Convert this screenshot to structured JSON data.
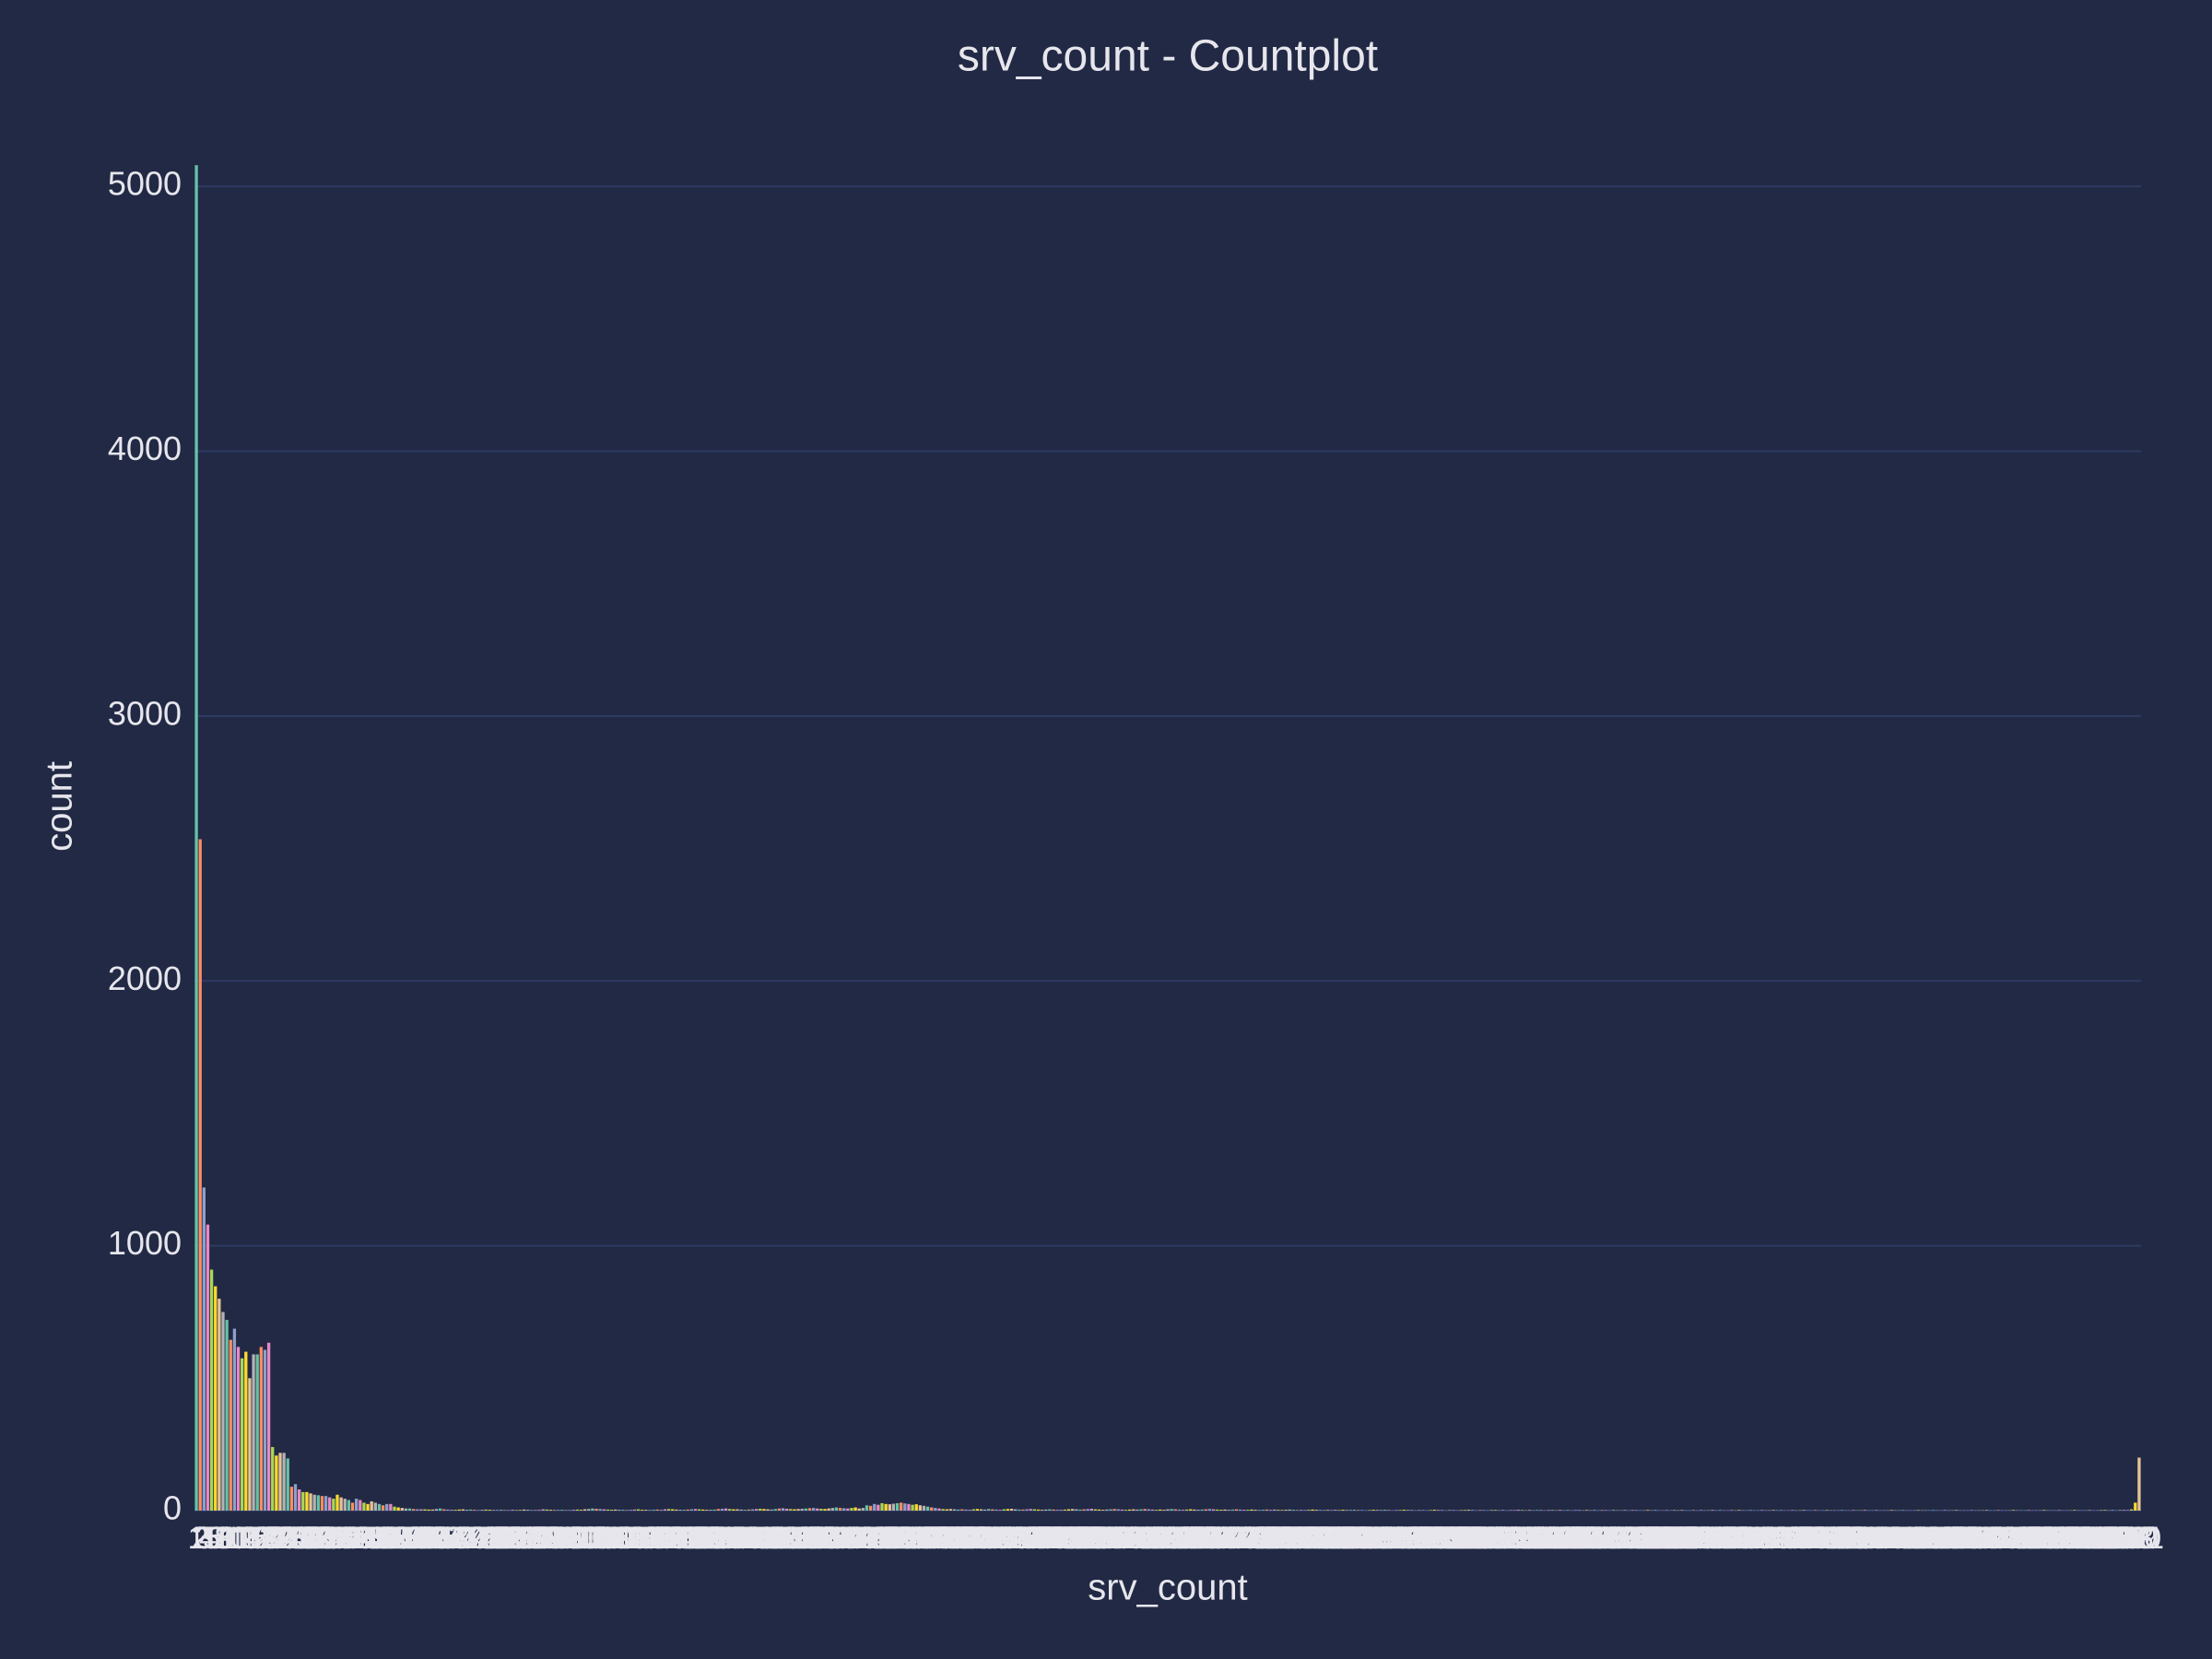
{
  "chart_data": {
    "type": "bar",
    "title": "srv_count - Countplot",
    "x_label": "srv_count",
    "y_label": "count",
    "palette": [
      "#66c2a5",
      "#fc8d62",
      "#8da0cb",
      "#e78ac3",
      "#a6d854",
      "#ffd92f",
      "#e5c494",
      "#b3b3b3"
    ],
    "ylim": [
      0,
      5300
    ],
    "yticks": [
      0,
      1000,
      2000,
      3000,
      4000,
      5000
    ],
    "grid": true,
    "categories": [
      1,
      2,
      3,
      4,
      5,
      6,
      7,
      8,
      9,
      10,
      11,
      12,
      13,
      14,
      15,
      16,
      17,
      18,
      19,
      20,
      21,
      22,
      23,
      24,
      25,
      26,
      27,
      28,
      29,
      30,
      31,
      32,
      33,
      34,
      35,
      36,
      37,
      38,
      39,
      40,
      41,
      42,
      43,
      44,
      45,
      46,
      47,
      48,
      49,
      50,
      51,
      52,
      53,
      54,
      55,
      56,
      57,
      58,
      59,
      60,
      61,
      62,
      63,
      64,
      65,
      66,
      67,
      68,
      69,
      70,
      71,
      72,
      73,
      74,
      75,
      76,
      77,
      78,
      79,
      80,
      81,
      82,
      83,
      84,
      85,
      86,
      87,
      88,
      89,
      90,
      91,
      92,
      93,
      94,
      95,
      96,
      97,
      98,
      99,
      100,
      101,
      102,
      103,
      104,
      105,
      106,
      107,
      108,
      109,
      110,
      111,
      112,
      113,
      114,
      115,
      116,
      117,
      118,
      119,
      120,
      121,
      122,
      123,
      124,
      125,
      126,
      127,
      128,
      129,
      130,
      131,
      132,
      133,
      134,
      135,
      136,
      137,
      138,
      139,
      140,
      141,
      142,
      143,
      144,
      145,
      146,
      147,
      148,
      149,
      150,
      151,
      152,
      153,
      154,
      155,
      156,
      157,
      158,
      159,
      160,
      161,
      162,
      163,
      164,
      165,
      166,
      167,
      168,
      169,
      170,
      171,
      172,
      173,
      174,
      175,
      176,
      177,
      178,
      179,
      180,
      181,
      182,
      183,
      184,
      185,
      186,
      187,
      188,
      189,
      190,
      191,
      192,
      193,
      194,
      195,
      196,
      197,
      198,
      199,
      200,
      201,
      202,
      203,
      204,
      205,
      206,
      207,
      208,
      209,
      210,
      211,
      212,
      213,
      214,
      215,
      216,
      217,
      218,
      219,
      220,
      221,
      222,
      223,
      224,
      225,
      226,
      227,
      228,
      229,
      230,
      231,
      232,
      233,
      234,
      235,
      236,
      237,
      238,
      239,
      240,
      241,
      242,
      243,
      244,
      245,
      246,
      247,
      248,
      249,
      250,
      251,
      252,
      253,
      254,
      255,
      256,
      257,
      258,
      259,
      260,
      261,
      262,
      263,
      264,
      265,
      266,
      267,
      268,
      269,
      270,
      271,
      272,
      273,
      274,
      275,
      276,
      277,
      278,
      279,
      280,
      281,
      282,
      283,
      284,
      285,
      286,
      287,
      288,
      289,
      290,
      291,
      292,
      293,
      294,
      295,
      296,
      297,
      298,
      299,
      300,
      301,
      302,
      303,
      304,
      305,
      306,
      307,
      308,
      309,
      310,
      311,
      312,
      313,
      314,
      315,
      316,
      317,
      318,
      319,
      320,
      321,
      322,
      323,
      324,
      325,
      326,
      327,
      328,
      329,
      330,
      331,
      332,
      333,
      334,
      335,
      336,
      337,
      338,
      339,
      340,
      341,
      342,
      343,
      344,
      345,
      346,
      347,
      348,
      349,
      350,
      351,
      352,
      353,
      354,
      355,
      356,
      357,
      358,
      359,
      360,
      361,
      362,
      363,
      364,
      365,
      366,
      367,
      368,
      369,
      370,
      371,
      372,
      373,
      374,
      375,
      376,
      377,
      378,
      379,
      380,
      381,
      382,
      383,
      384,
      385,
      386,
      387,
      388,
      389,
      390,
      391,
      392,
      393,
      394,
      395,
      396,
      397,
      398,
      399,
      400,
      401,
      402,
      403,
      404,
      405,
      406,
      407,
      408,
      409,
      410,
      411,
      412,
      413,
      414,
      415,
      416,
      417,
      418,
      419,
      420,
      421,
      422,
      423,
      424,
      425,
      426,
      427,
      428,
      429,
      430,
      431,
      432,
      433,
      434,
      435,
      436,
      437,
      438,
      439,
      440,
      441,
      442,
      443,
      444,
      445,
      446,
      447,
      448,
      449,
      450,
      451,
      452,
      453,
      454,
      455,
      456,
      457,
      458,
      459,
      460,
      461,
      462,
      463,
      464,
      465,
      466,
      467,
      468,
      469,
      470,
      471,
      472,
      473,
      474,
      475,
      476,
      477,
      478,
      479,
      480,
      481,
      482,
      483,
      484,
      485,
      486,
      487,
      488,
      489,
      490,
      491,
      492,
      493,
      494,
      495,
      496,
      497,
      498,
      499,
      500,
      501,
      502,
      503,
      504,
      505,
      506,
      507,
      508,
      509,
      510,
      511
    ],
    "values": [
      5080,
      2535,
      1220,
      1080,
      910,
      847,
      800,
      750,
      720,
      645,
      687,
      618,
      575,
      600,
      500,
      590,
      590,
      618,
      607,
      634,
      240,
      208,
      218,
      218,
      197,
      90,
      100,
      80,
      70,
      70,
      65,
      60,
      58,
      55,
      55,
      50,
      45,
      60,
      50,
      45,
      40,
      30,
      45,
      40,
      30,
      25,
      35,
      30,
      25,
      20,
      25,
      25,
      15,
      12,
      10,
      8,
      8,
      6,
      5,
      5,
      5,
      4,
      4,
      6,
      8,
      5,
      4,
      3,
      3,
      4,
      5,
      3,
      4,
      3,
      2,
      3,
      4,
      3,
      2,
      2,
      3,
      2,
      2,
      3,
      2,
      2,
      4,
      3,
      2,
      2,
      3,
      5,
      4,
      3,
      2,
      2,
      3,
      2,
      2,
      3,
      4,
      3,
      5,
      6,
      8,
      7,
      6,
      5,
      4,
      3,
      4,
      3,
      3,
      2,
      3,
      4,
      5,
      3,
      3,
      2,
      3,
      4,
      3,
      5,
      6,
      5,
      4,
      3,
      3,
      4,
      5,
      6,
      5,
      4,
      3,
      3,
      4,
      6,
      7,
      8,
      6,
      5,
      5,
      4,
      3,
      4,
      5,
      6,
      7,
      6,
      5,
      4,
      6,
      8,
      9,
      7,
      6,
      5,
      6,
      7,
      8,
      9,
      10,
      8,
      7,
      6,
      8,
      10,
      12,
      10,
      9,
      8,
      10,
      12,
      8,
      10,
      20,
      18,
      25,
      22,
      28,
      25,
      24,
      26,
      28,
      30,
      27,
      25,
      22,
      24,
      20,
      18,
      15,
      12,
      10,
      8,
      6,
      5,
      6,
      5,
      4,
      5,
      4,
      3,
      5,
      6,
      5,
      4,
      6,
      5,
      4,
      3,
      5,
      6,
      7,
      5,
      4,
      4,
      5,
      6,
      5,
      4,
      3,
      4,
      5,
      4,
      3,
      3,
      4,
      5,
      6,
      5,
      4,
      5,
      6,
      7,
      5,
      4,
      3,
      4,
      5,
      6,
      5,
      4,
      3,
      4,
      5,
      4,
      5,
      6,
      5,
      4,
      3,
      4,
      3,
      5,
      6,
      5,
      4,
      3,
      4,
      5,
      4,
      3,
      4,
      5,
      6,
      5,
      4,
      3,
      4,
      3,
      4,
      5,
      4,
      3,
      3,
      4,
      3,
      2,
      3,
      4,
      3,
      4,
      3,
      2,
      3,
      4,
      3,
      2,
      3,
      2,
      3,
      4,
      3,
      2,
      2,
      3,
      2,
      3,
      2,
      3,
      2,
      2,
      3,
      2,
      2,
      1,
      2,
      3,
      2,
      2,
      3,
      2,
      1,
      2,
      2,
      3,
      2,
      2,
      1,
      2,
      2,
      1,
      2,
      3,
      2,
      2,
      1,
      2,
      2,
      1,
      2,
      2,
      3,
      2,
      1,
      2,
      2,
      1,
      2,
      2,
      1,
      2,
      1,
      2,
      2,
      3,
      2,
      1,
      2,
      1,
      2,
      2,
      1,
      2,
      2,
      1,
      2,
      1,
      2,
      1,
      2,
      2,
      1,
      2,
      1,
      2,
      1,
      2,
      2,
      1,
      2,
      1,
      1,
      2,
      1,
      2,
      2,
      1,
      1,
      2,
      1,
      2,
      1,
      1,
      2,
      1,
      2,
      1,
      2,
      1,
      1,
      2,
      1,
      2,
      1,
      1,
      2,
      1,
      2,
      1,
      1,
      2,
      1,
      2,
      1,
      1,
      2,
      1,
      1,
      2,
      1,
      1,
      2,
      1,
      2,
      1,
      1,
      2,
      1,
      1,
      2,
      1,
      1,
      2,
      1,
      1,
      2,
      1,
      1,
      1,
      2,
      1,
      1,
      2,
      1,
      1,
      2,
      1,
      1,
      2,
      1,
      1,
      1,
      2,
      1,
      1,
      2,
      1,
      1,
      1,
      2,
      1,
      1,
      1,
      2,
      1,
      1,
      2,
      1,
      1,
      2,
      1,
      1,
      1,
      2,
      1,
      1,
      1,
      2,
      1,
      1,
      2,
      1,
      1,
      1,
      2,
      1,
      1,
      1,
      2,
      1,
      1,
      1,
      2,
      1,
      1,
      1,
      2,
      1,
      1,
      1,
      2,
      1,
      1,
      1,
      2,
      1,
      1,
      2,
      2,
      1,
      2,
      1,
      2,
      3,
      2,
      5,
      30,
      200
    ]
  }
}
